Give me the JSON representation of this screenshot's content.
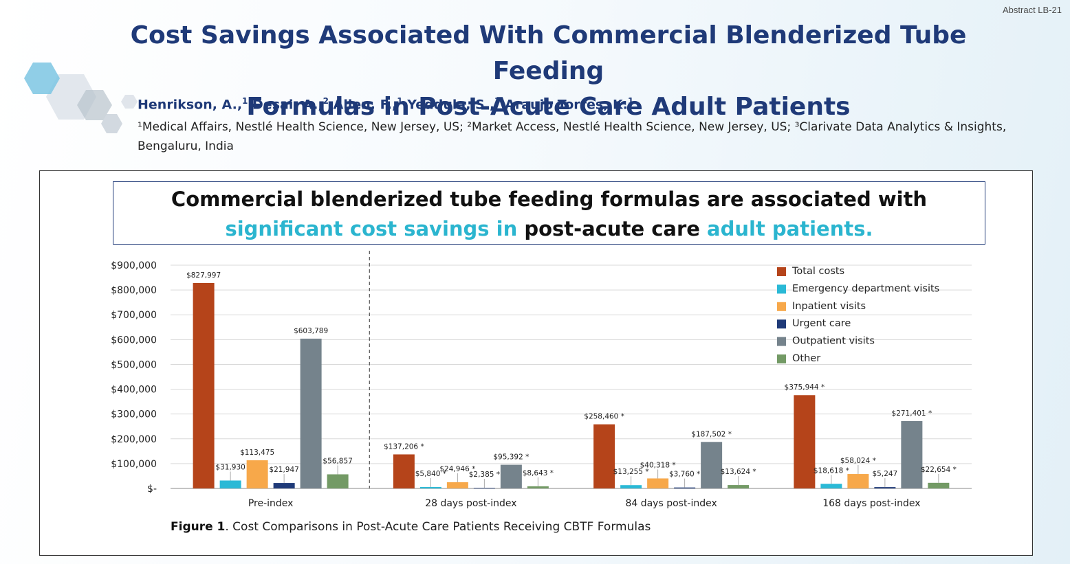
{
  "abstract_id": "Abstract LB-21",
  "title": {
    "line1": "Cost Savings Associated With Commercial Blenderized Tube Feeding",
    "line2": "Formulas in Post-Acute Care Adult Patients"
  },
  "authors": [
    {
      "name": "Henrikson, A.,",
      "sup": "1"
    },
    {
      "name": "Desai, A.,",
      "sup": "2"
    },
    {
      "name": "Allen, F.,",
      "sup": "1"
    },
    {
      "name": "Yeddula, S.,",
      "sup": "3"
    },
    {
      "name": "Araujo Torres, K.",
      "sup": "1"
    }
  ],
  "affiliations": "¹Medical Affairs, Nestlé Health Science, New Jersey, US; ²Market Access, Nestlé Health Science, New Jersey, US; ³Clarivate Data Analytics & Insights, Bengaluru, India",
  "headline": {
    "part1": "Commercial blenderized tube feeding formulas are associated with ",
    "part2": "significant cost savings in",
    "part3": " post-acute care ",
    "part4": "adult patients."
  },
  "caption": {
    "label": "Figure 1",
    "text": ". Cost Comparisons in Post-Acute Care Patients Receiving CBTF Formulas"
  },
  "colors": {
    "title": "#1f3a78",
    "accent_teal": "#2bb5cf",
    "total_costs": "#b5441a",
    "emergency": "#2ab9d6",
    "inpatient": "#f7a84a",
    "urgent": "#1f3a78",
    "outpatient": "#75838c",
    "other": "#739a65"
  },
  "chart_data": {
    "type": "bar",
    "title": "",
    "xlabel": "",
    "ylabel": "",
    "ylim": [
      0,
      900000
    ],
    "yticks": [
      0,
      100000,
      200000,
      300000,
      400000,
      500000,
      600000,
      700000,
      800000,
      900000
    ],
    "ytick_labels": [
      "$-",
      "$100,000",
      "$200,000",
      "$300,000",
      "$400,000",
      "$500,000",
      "$600,000",
      "$700,000",
      "$800,000",
      "$900,000"
    ],
    "grid": true,
    "legend_position": "top-right",
    "categories": [
      "Pre-index",
      "28 days post-index",
      "84 days post-index",
      "168 days post-index"
    ],
    "series": [
      {
        "name": "Total costs",
        "color": "#b5441a",
        "values": [
          827997,
          137206,
          258460,
          375944
        ],
        "labels": [
          "$827,997",
          "$137,206 *",
          "$258,460 *",
          "$375,944 *"
        ]
      },
      {
        "name": "Emergency department visits",
        "color": "#2ab9d6",
        "values": [
          31930,
          5840,
          13255,
          18618
        ],
        "labels": [
          "$31,930",
          "$5,840 *",
          "$13,255 *",
          "$18,618 *"
        ]
      },
      {
        "name": "Inpatient visits",
        "color": "#f7a84a",
        "values": [
          113475,
          24946,
          40318,
          58024
        ],
        "labels": [
          "$113,475",
          "$24,946 *",
          "$40,318 *",
          "$58,024 *"
        ]
      },
      {
        "name": "Urgent care",
        "color": "#1f3a78",
        "values": [
          21947,
          2385,
          3760,
          5247
        ],
        "labels": [
          "$21,947",
          "$2,385 *",
          "$3,760 *",
          "$5,247"
        ]
      },
      {
        "name": "Outpatient visits",
        "color": "#75838c",
        "values": [
          603789,
          95392,
          187502,
          271401
        ],
        "labels": [
          "$603,789",
          "$95,392 *",
          "$187,502 *",
          "$271,401 *"
        ]
      },
      {
        "name": "Other",
        "color": "#739a65",
        "values": [
          56857,
          8643,
          13624,
          22654
        ],
        "labels": [
          "$56,857",
          "$8,643 *",
          "$13,624 *",
          "$22,654 *"
        ]
      }
    ]
  }
}
